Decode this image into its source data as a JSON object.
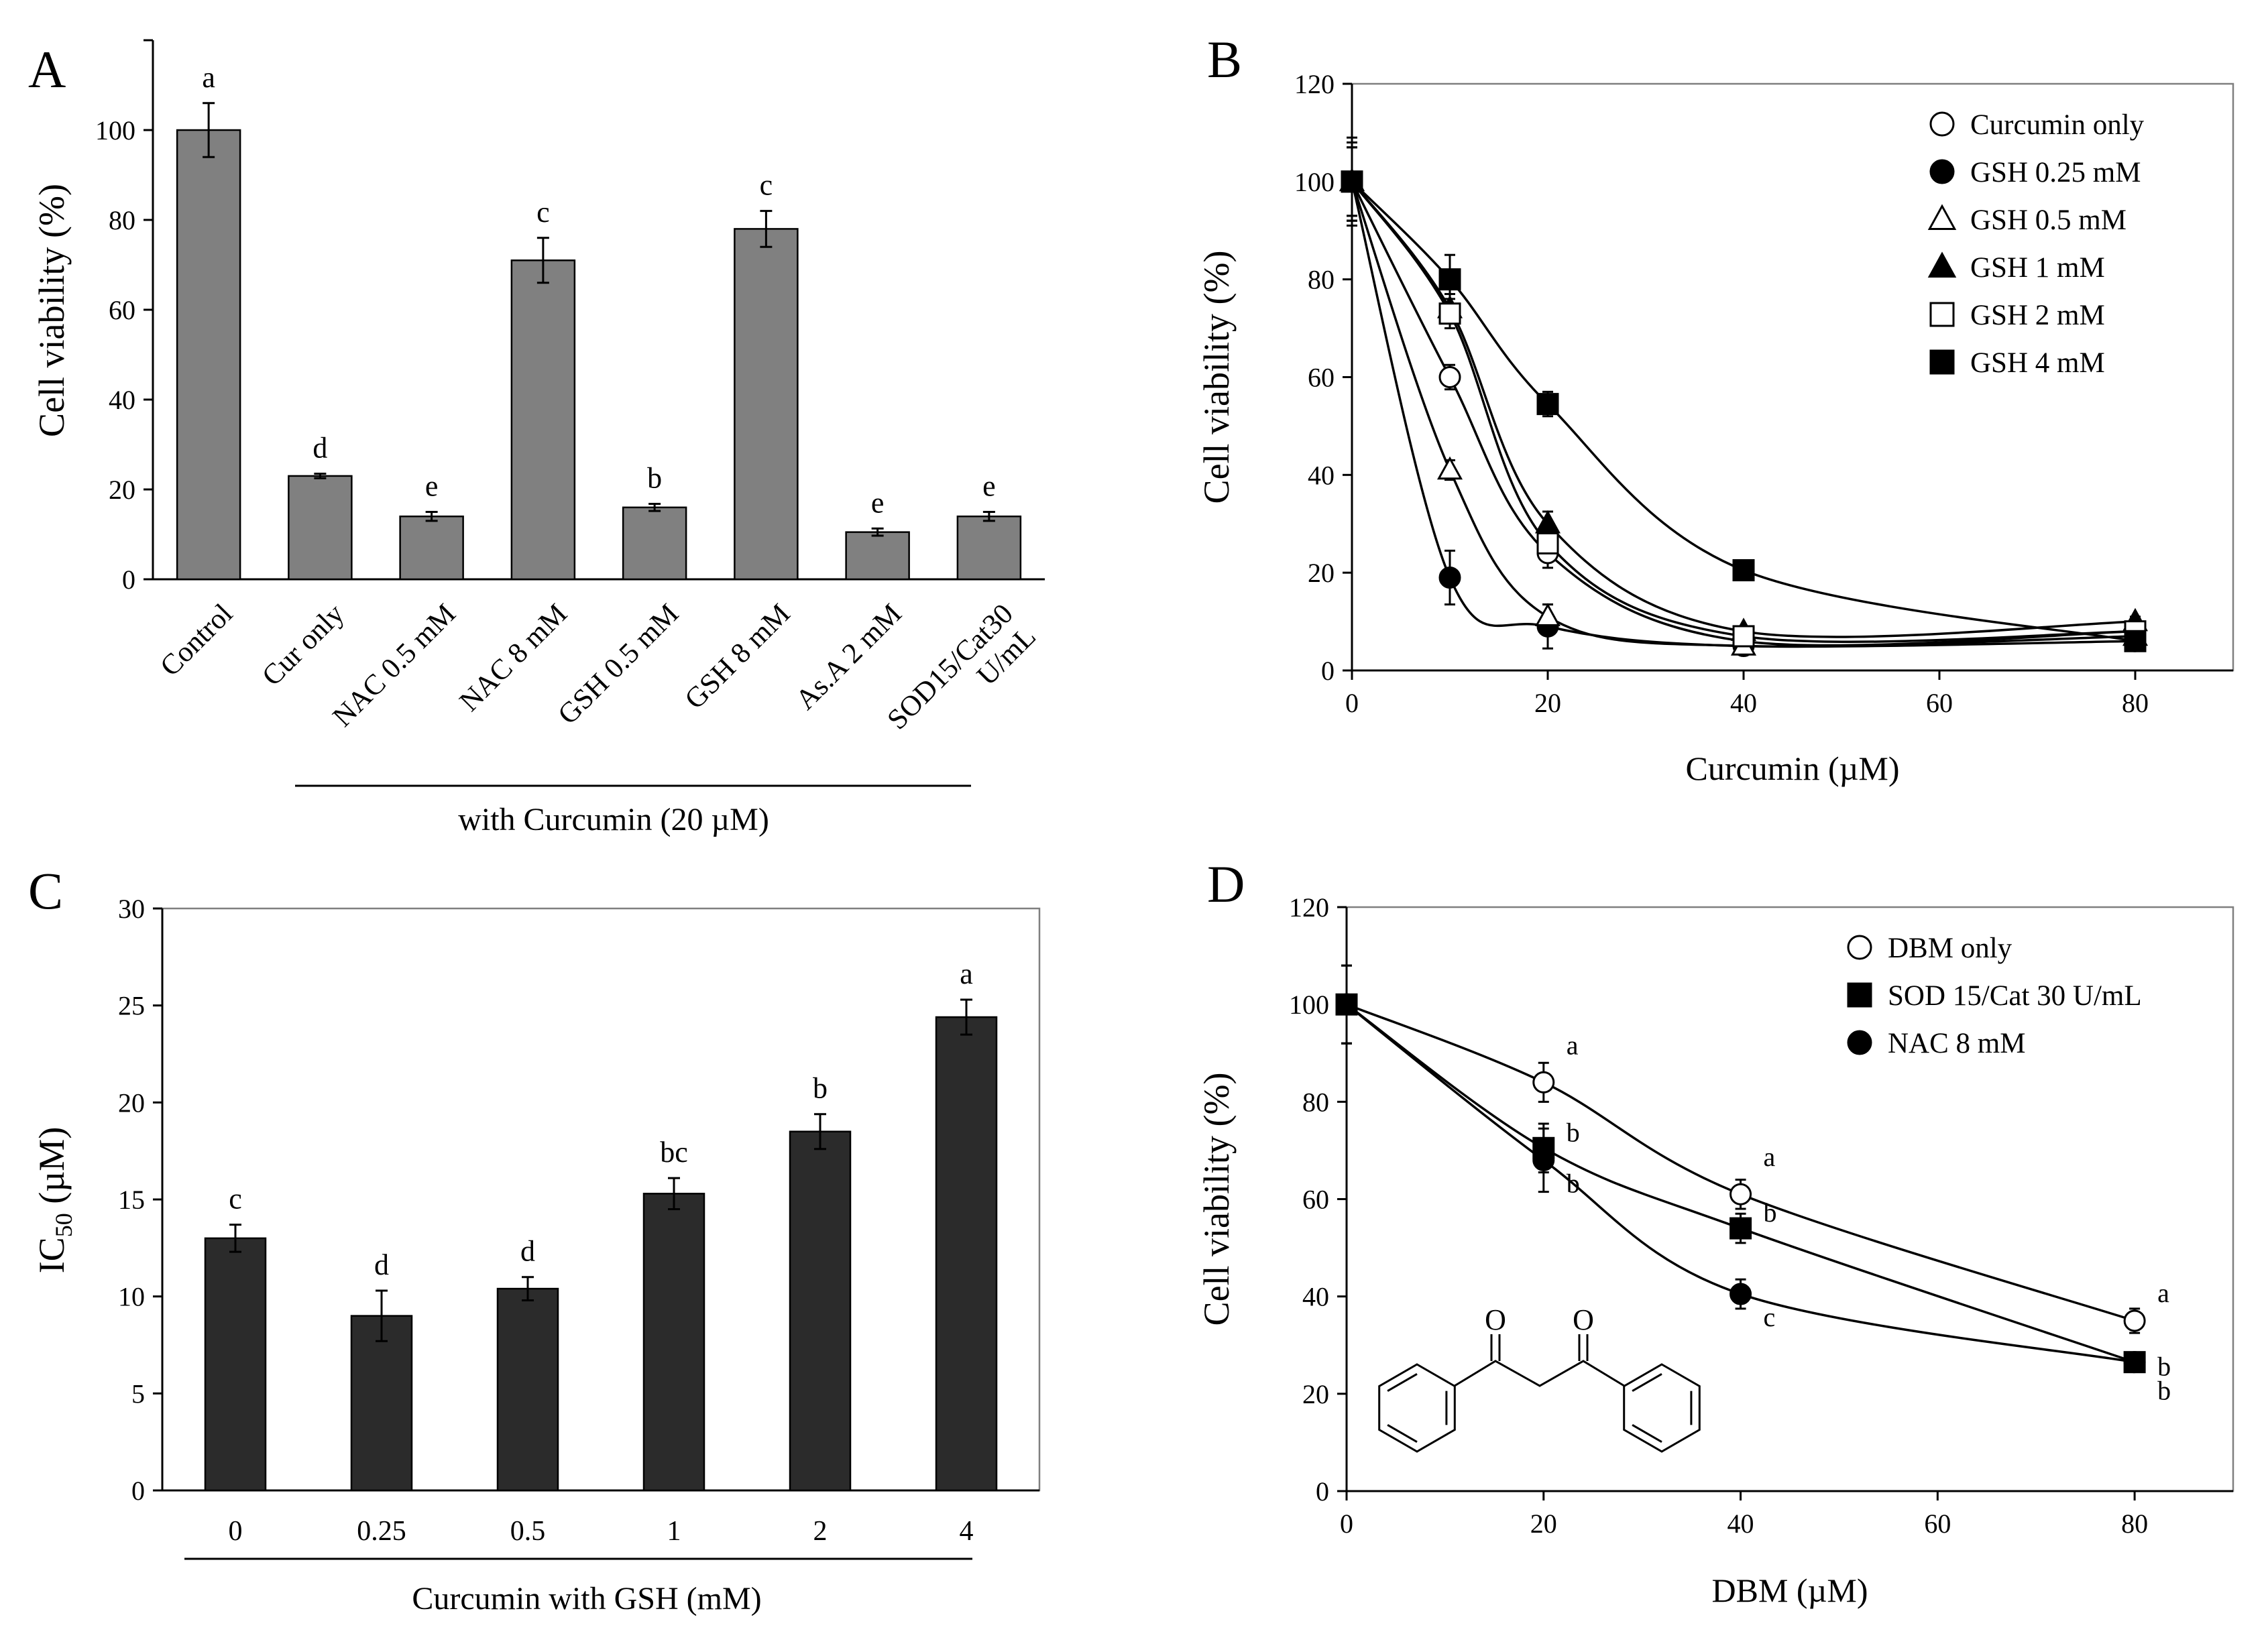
{
  "figure": {
    "panel_labels": [
      "A",
      "B",
      "C",
      "D"
    ]
  },
  "chart_data": [
    {
      "panel": "A",
      "type": "bar",
      "title": "",
      "xlabel": "with Curcumin (20 µM)",
      "ylabel": "Cell viability (%)",
      "ylim": [
        0,
        120
      ],
      "yticks": [
        0,
        20,
        40,
        60,
        80,
        100
      ],
      "show_top_tick": false,
      "bar_color": "#808080",
      "categories": [
        "Control",
        "Cur only",
        "NAC 0.5 mM",
        "NAC 8 mM",
        "GSH 0.5 mM",
        "GSH 8 mM",
        "As.A 2 mM",
        "SOD15/Cat30\nU/mL"
      ],
      "values": [
        100,
        23,
        14,
        71,
        16,
        78,
        10.5,
        14
      ],
      "errors": [
        6,
        0.5,
        1,
        5,
        0.8,
        4,
        0.8,
        1
      ],
      "sig_letters": [
        "a",
        "d",
        "e",
        "c",
        "b",
        "c",
        "e",
        "e"
      ],
      "group_line": {
        "from_index": 1,
        "to_index": 7
      }
    },
    {
      "panel": "B",
      "type": "line",
      "title": "",
      "xlabel": "Curcumin (µM)",
      "ylabel": "Cell viability (%)",
      "xlim": [
        0,
        90
      ],
      "ylim": [
        0,
        120
      ],
      "xticks": [
        0,
        20,
        40,
        60,
        80
      ],
      "yticks": [
        0,
        20,
        40,
        60,
        80,
        100,
        120
      ],
      "legend_position": "top-right",
      "x": [
        0,
        10,
        20,
        40,
        80
      ],
      "series": [
        {
          "name": "Curcumin only",
          "marker": "circle",
          "filled": false,
          "values": [
            100,
            60,
            24,
            6,
            8
          ],
          "errors": [
            8,
            2.5,
            3,
            1,
            1
          ]
        },
        {
          "name": "GSH 0.25 mM",
          "marker": "circle",
          "filled": true,
          "values": [
            100,
            19,
            9,
            5,
            6
          ],
          "errors": [
            7,
            5.5,
            4.5,
            1,
            1
          ]
        },
        {
          "name": "GSH 0.5 mM",
          "marker": "triangle",
          "filled": false,
          "values": [
            100,
            41,
            11,
            5,
            7
          ],
          "errors": [
            7,
            2,
            2.5,
            1,
            1
          ]
        },
        {
          "name": "GSH 1 mM",
          "marker": "triangle",
          "filled": true,
          "values": [
            100,
            74,
            30,
            8,
            10
          ],
          "errors": [
            8,
            3,
            2.5,
            1,
            1
          ]
        },
        {
          "name": "GSH 2 mM",
          "marker": "square",
          "filled": false,
          "values": [
            100,
            73,
            26,
            7,
            8
          ],
          "errors": [
            8,
            3,
            3,
            1,
            1
          ]
        },
        {
          "name": "GSH 4 mM",
          "marker": "square",
          "filled": true,
          "values": [
            100,
            80,
            54.5,
            20.5,
            6
          ],
          "errors": [
            9,
            5,
            2.5,
            1.5,
            1
          ]
        }
      ]
    },
    {
      "panel": "C",
      "type": "bar",
      "title": "",
      "xlabel": "Curcumin  with  GSH (mM)",
      "ylabel": "IC",
      "ylabel_sub": "50",
      "ylabel_unit": " (µM)",
      "ylim": [
        0,
        30
      ],
      "yticks": [
        0,
        5,
        10,
        15,
        20,
        25,
        30
      ],
      "show_top_tick": true,
      "bar_color": "#2b2b2b",
      "categories": [
        "0",
        "0.25",
        "0.5",
        "1",
        "2",
        "4"
      ],
      "values": [
        13,
        9,
        10.4,
        15.3,
        18.5,
        24.4
      ],
      "errors": [
        0.7,
        1.3,
        0.6,
        0.8,
        0.9,
        0.9
      ],
      "sig_letters": [
        "c",
        "d",
        "d",
        "bc",
        "b",
        "a"
      ]
    },
    {
      "panel": "D",
      "type": "line",
      "title": "",
      "xlabel": "DBM (µM)",
      "ylabel": "Cell viability (%)",
      "xlim": [
        0,
        90
      ],
      "ylim": [
        0,
        120
      ],
      "xticks": [
        0,
        20,
        40,
        60,
        80
      ],
      "yticks": [
        0,
        20,
        40,
        60,
        80,
        100,
        120
      ],
      "legend_position": "top-right",
      "x": [
        0,
        20,
        40,
        80
      ],
      "series": [
        {
          "name": "DBM only",
          "marker": "circle",
          "filled": false,
          "values": [
            100,
            84,
            61,
            35
          ],
          "errors": [
            8,
            4,
            3,
            2.5
          ],
          "sig_letters": [
            "",
            "a",
            "a",
            "a"
          ]
        },
        {
          "name": "SOD 15/Cat 30 U/mL",
          "marker": "square",
          "filled": true,
          "values": [
            100,
            70.5,
            54,
            26.5
          ],
          "errors": [
            8,
            5,
            3,
            1.5
          ],
          "sig_letters": [
            "",
            "b",
            "b",
            "b"
          ]
        },
        {
          "name": "NAC 8 mM",
          "marker": "circle",
          "filled": true,
          "values": [
            100,
            68,
            40.5,
            26.5
          ],
          "errors": [
            8,
            6.5,
            3,
            1.5
          ],
          "sig_letters": [
            "",
            "b",
            "c",
            "b"
          ]
        }
      ],
      "structure_label": {
        "oxygen_left": "O",
        "oxygen_right": "O"
      }
    }
  ]
}
